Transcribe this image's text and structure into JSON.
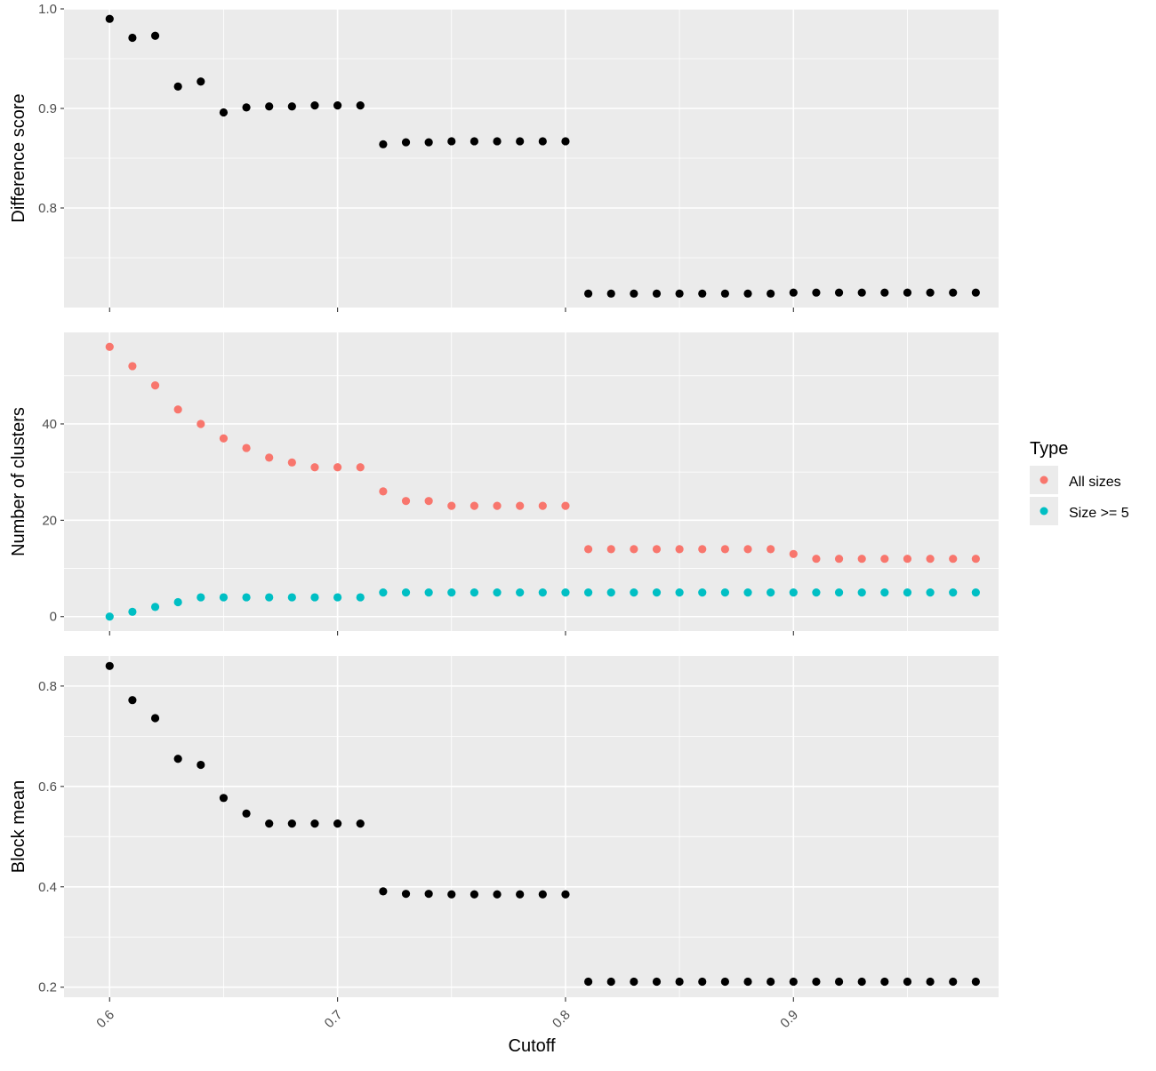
{
  "chart_data": [
    {
      "type": "scatter",
      "ylabel": "Difference score",
      "ylim": [
        0.7,
        1.0
      ],
      "yticks": [
        0.8,
        0.9,
        1.0
      ],
      "ytick_labels": [
        "0.8",
        "0.9",
        "1.0"
      ],
      "xlim": [
        0.58,
        0.99
      ],
      "grid": true,
      "series": [
        {
          "color": "#000000",
          "points": [
            [
              0.6,
              0.99
            ],
            [
              0.61,
              0.971
            ],
            [
              0.62,
              0.973
            ],
            [
              0.63,
              0.922
            ],
            [
              0.64,
              0.927
            ],
            [
              0.65,
              0.896
            ],
            [
              0.66,
              0.901
            ],
            [
              0.67,
              0.902
            ],
            [
              0.68,
              0.902
            ],
            [
              0.69,
              0.903
            ],
            [
              0.7,
              0.903
            ],
            [
              0.71,
              0.903
            ],
            [
              0.72,
              0.864
            ],
            [
              0.73,
              0.866
            ],
            [
              0.74,
              0.866
            ],
            [
              0.75,
              0.867
            ],
            [
              0.76,
              0.867
            ],
            [
              0.77,
              0.867
            ],
            [
              0.78,
              0.867
            ],
            [
              0.79,
              0.867
            ],
            [
              0.8,
              0.867
            ],
            [
              0.81,
              0.714
            ],
            [
              0.82,
              0.714
            ],
            [
              0.83,
              0.714
            ],
            [
              0.84,
              0.714
            ],
            [
              0.85,
              0.714
            ],
            [
              0.86,
              0.714
            ],
            [
              0.87,
              0.714
            ],
            [
              0.88,
              0.714
            ],
            [
              0.89,
              0.714
            ],
            [
              0.9,
              0.715
            ],
            [
              0.91,
              0.715
            ],
            [
              0.92,
              0.715
            ],
            [
              0.93,
              0.715
            ],
            [
              0.94,
              0.715
            ],
            [
              0.95,
              0.715
            ],
            [
              0.96,
              0.715
            ],
            [
              0.97,
              0.715
            ],
            [
              0.98,
              0.715
            ]
          ]
        }
      ]
    },
    {
      "type": "scatter",
      "ylabel": "Number of clusters",
      "ylim": [
        -3,
        59
      ],
      "yticks": [
        0,
        20,
        40
      ],
      "ytick_labels": [
        "0",
        "20",
        "40"
      ],
      "xlim": [
        0.58,
        0.99
      ],
      "grid": true,
      "series": [
        {
          "name": "All sizes",
          "color": "#F8766D",
          "points": [
            [
              0.6,
              56
            ],
            [
              0.61,
              52
            ],
            [
              0.62,
              48
            ],
            [
              0.63,
              43
            ],
            [
              0.64,
              40
            ],
            [
              0.65,
              37
            ],
            [
              0.66,
              35
            ],
            [
              0.67,
              33
            ],
            [
              0.68,
              32
            ],
            [
              0.69,
              31
            ],
            [
              0.7,
              31
            ],
            [
              0.71,
              31
            ],
            [
              0.72,
              26
            ],
            [
              0.73,
              24
            ],
            [
              0.74,
              24
            ],
            [
              0.75,
              23
            ],
            [
              0.76,
              23
            ],
            [
              0.77,
              23
            ],
            [
              0.78,
              23
            ],
            [
              0.79,
              23
            ],
            [
              0.8,
              23
            ],
            [
              0.81,
              14
            ],
            [
              0.82,
              14
            ],
            [
              0.83,
              14
            ],
            [
              0.84,
              14
            ],
            [
              0.85,
              14
            ],
            [
              0.86,
              14
            ],
            [
              0.87,
              14
            ],
            [
              0.88,
              14
            ],
            [
              0.89,
              14
            ],
            [
              0.9,
              13
            ],
            [
              0.91,
              12
            ],
            [
              0.92,
              12
            ],
            [
              0.93,
              12
            ],
            [
              0.94,
              12
            ],
            [
              0.95,
              12
            ],
            [
              0.96,
              12
            ],
            [
              0.97,
              12
            ],
            [
              0.98,
              12
            ]
          ]
        },
        {
          "name": "Size >= 5",
          "color": "#00BFC4",
          "points": [
            [
              0.6,
              0
            ],
            [
              0.61,
              1
            ],
            [
              0.62,
              2
            ],
            [
              0.63,
              3
            ],
            [
              0.64,
              4
            ],
            [
              0.65,
              4
            ],
            [
              0.66,
              4
            ],
            [
              0.67,
              4
            ],
            [
              0.68,
              4
            ],
            [
              0.69,
              4
            ],
            [
              0.7,
              4
            ],
            [
              0.71,
              4
            ],
            [
              0.72,
              5
            ],
            [
              0.73,
              5
            ],
            [
              0.74,
              5
            ],
            [
              0.75,
              5
            ],
            [
              0.76,
              5
            ],
            [
              0.77,
              5
            ],
            [
              0.78,
              5
            ],
            [
              0.79,
              5
            ],
            [
              0.8,
              5
            ],
            [
              0.81,
              5
            ],
            [
              0.82,
              5
            ],
            [
              0.83,
              5
            ],
            [
              0.84,
              5
            ],
            [
              0.85,
              5
            ],
            [
              0.86,
              5
            ],
            [
              0.87,
              5
            ],
            [
              0.88,
              5
            ],
            [
              0.89,
              5
            ],
            [
              0.9,
              5
            ],
            [
              0.91,
              5
            ],
            [
              0.92,
              5
            ],
            [
              0.93,
              5
            ],
            [
              0.94,
              5
            ],
            [
              0.95,
              5
            ],
            [
              0.96,
              5
            ],
            [
              0.97,
              5
            ],
            [
              0.98,
              5
            ]
          ]
        }
      ],
      "legend": {
        "title": "Type",
        "position": "right",
        "entries": [
          "All sizes",
          "Size >= 5"
        ]
      }
    },
    {
      "type": "scatter",
      "ylabel": "Block mean",
      "xlabel": "Cutoff",
      "ylim": [
        0.18,
        0.86
      ],
      "yticks": [
        0.2,
        0.4,
        0.6,
        0.8
      ],
      "ytick_labels": [
        "0.2",
        "0.4",
        "0.6",
        "0.8"
      ],
      "xlim": [
        0.58,
        0.99
      ],
      "xticks": [
        0.6,
        0.7,
        0.8,
        0.9
      ],
      "xtick_labels": [
        "0.6",
        "0.7",
        "0.8",
        "0.9"
      ],
      "grid": true,
      "series": [
        {
          "color": "#000000",
          "points": [
            [
              0.6,
              0.84
            ],
            [
              0.61,
              0.772
            ],
            [
              0.62,
              0.736
            ],
            [
              0.63,
              0.655
            ],
            [
              0.64,
              0.643
            ],
            [
              0.65,
              0.577
            ],
            [
              0.66,
              0.546
            ],
            [
              0.67,
              0.526
            ],
            [
              0.68,
              0.526
            ],
            [
              0.69,
              0.526
            ],
            [
              0.7,
              0.526
            ],
            [
              0.71,
              0.526
            ],
            [
              0.72,
              0.391
            ],
            [
              0.73,
              0.386
            ],
            [
              0.74,
              0.386
            ],
            [
              0.75,
              0.385
            ],
            [
              0.76,
              0.385
            ],
            [
              0.77,
              0.385
            ],
            [
              0.78,
              0.385
            ],
            [
              0.79,
              0.385
            ],
            [
              0.8,
              0.385
            ],
            [
              0.81,
              0.211
            ],
            [
              0.82,
              0.211
            ],
            [
              0.83,
              0.211
            ],
            [
              0.84,
              0.211
            ],
            [
              0.85,
              0.211
            ],
            [
              0.86,
              0.211
            ],
            [
              0.87,
              0.211
            ],
            [
              0.88,
              0.211
            ],
            [
              0.89,
              0.211
            ],
            [
              0.9,
              0.211
            ],
            [
              0.91,
              0.211
            ],
            [
              0.92,
              0.211
            ],
            [
              0.93,
              0.211
            ],
            [
              0.94,
              0.211
            ],
            [
              0.95,
              0.211
            ],
            [
              0.96,
              0.211
            ],
            [
              0.97,
              0.211
            ],
            [
              0.98,
              0.211
            ]
          ]
        }
      ]
    }
  ],
  "legend": {
    "title": "Type",
    "entries": [
      {
        "label": "All sizes",
        "color": "#F8766D"
      },
      {
        "label": "Size >= 5",
        "color": "#00BFC4"
      }
    ]
  },
  "xaxis": {
    "label": "Cutoff",
    "ticks": [
      0.6,
      0.7,
      0.8,
      0.9
    ],
    "tick_labels": [
      "0.6",
      "0.7",
      "0.8",
      "0.9"
    ]
  }
}
